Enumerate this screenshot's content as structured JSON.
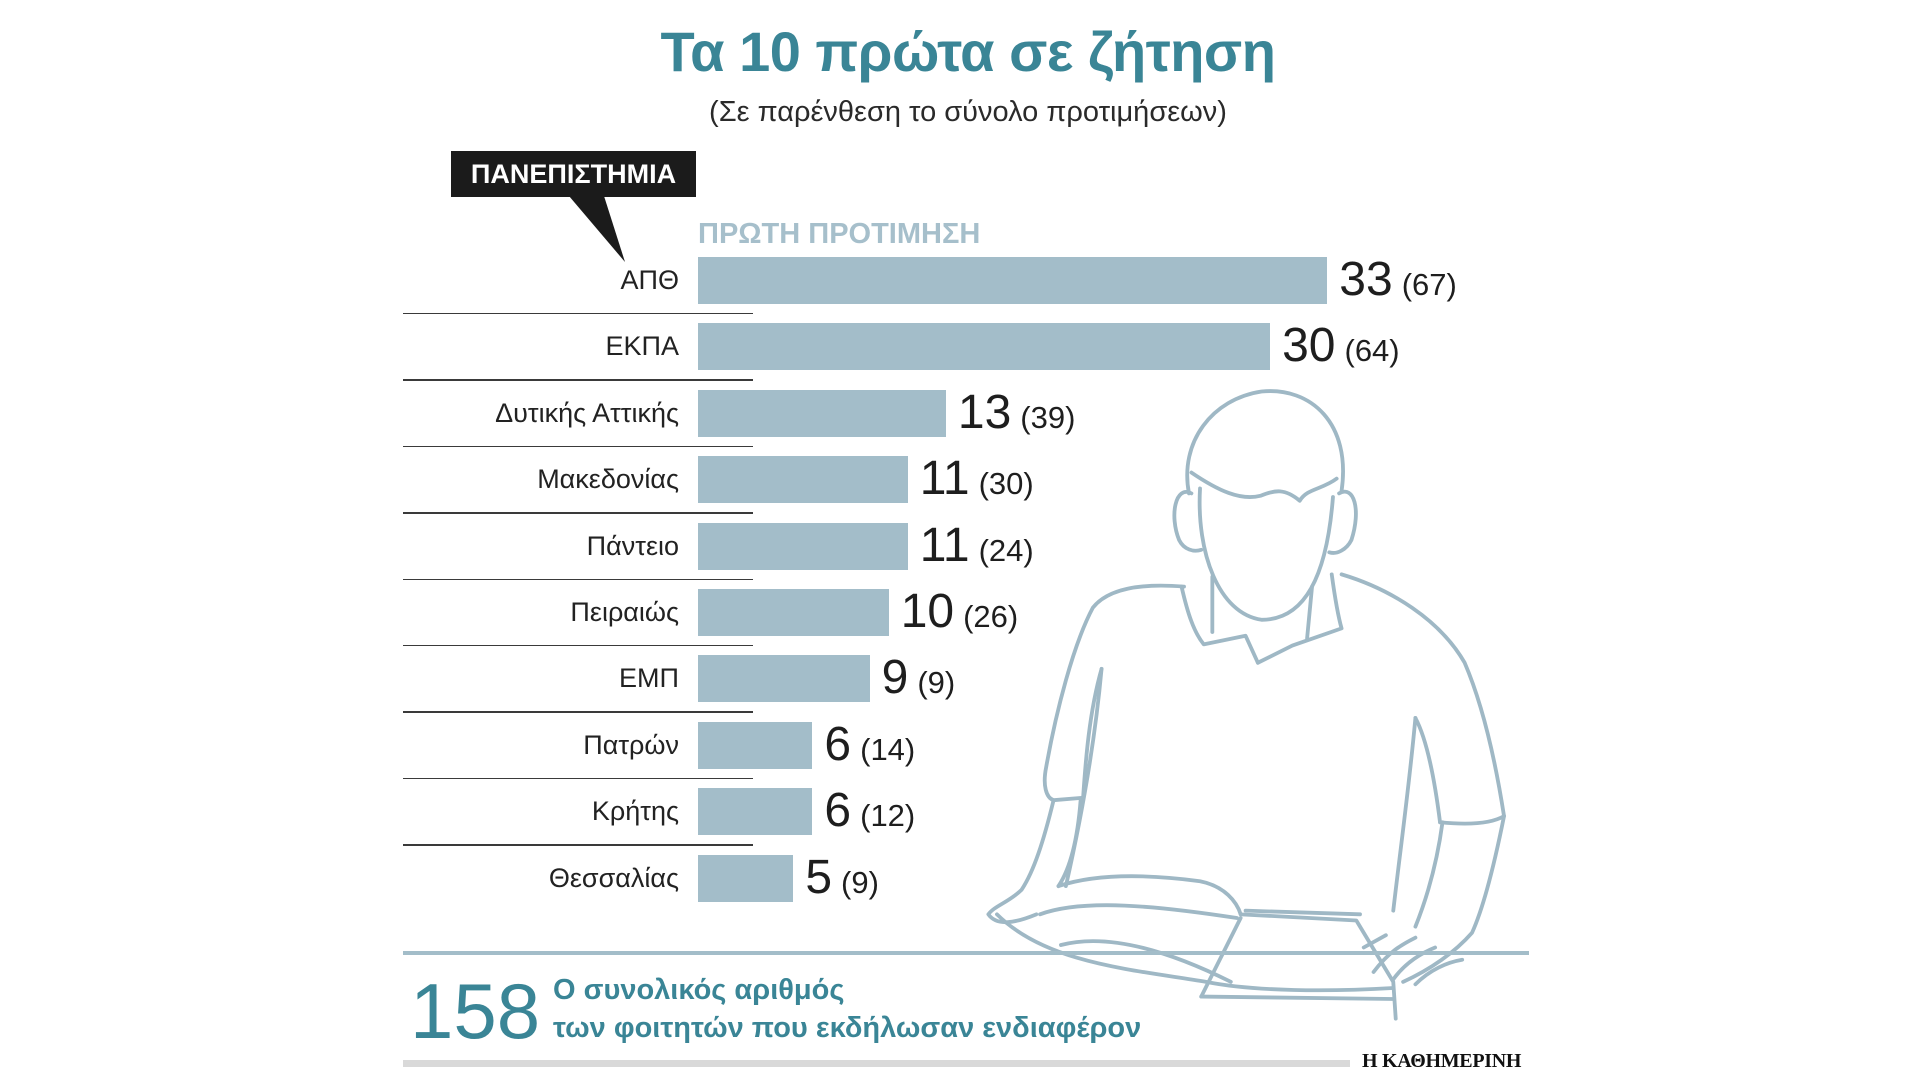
{
  "chart_data": {
    "type": "bar",
    "orientation": "horizontal",
    "title": "Τα 10 πρώτα σε ζήτηση",
    "subtitle": "(Σε παρένθεση το σύνολο προτιμήσεων)",
    "category_label": "ΠΑΝΕΠΙΣΤΗΜΙΑ",
    "categories": [
      "ΑΠΘ",
      "ΕΚΠΑ",
      "Δυτικής Αττικής",
      "Μακεδονίας",
      "Πάντειο",
      "Πειραιώς",
      "ΕΜΠ",
      "Πατρών",
      "Κρήτης",
      "Θεσσαλίας"
    ],
    "series": [
      {
        "name": "ΠΡΩΤΗ ΠΡΟΤΙΜΗΣΗ",
        "values": [
          33,
          30,
          13,
          11,
          11,
          10,
          9,
          6,
          6,
          5
        ],
        "color": "#a3bdc9"
      },
      {
        "values": [
          67,
          64,
          39,
          30,
          24,
          26,
          9,
          14,
          12,
          9
        ]
      }
    ],
    "grid": false,
    "legend": "none"
  },
  "summary": {
    "total": 158,
    "line1": "Ο συνολικός αριθμός",
    "line2": "των φοιτητών που εκδήλωσαν ενδιαφέρον"
  },
  "source": "Η ΚΑΘΗΜΕΡΙΝΗ",
  "illustration": "person-reading-illustration",
  "colors": {
    "title": "#3a8596",
    "accent": "#3a8596",
    "bar": "#a3bdc9",
    "series_header": "#a6bfcb",
    "illustration": "#9fb8c5",
    "label_box": "#1b1b1b",
    "text": "#222222"
  }
}
